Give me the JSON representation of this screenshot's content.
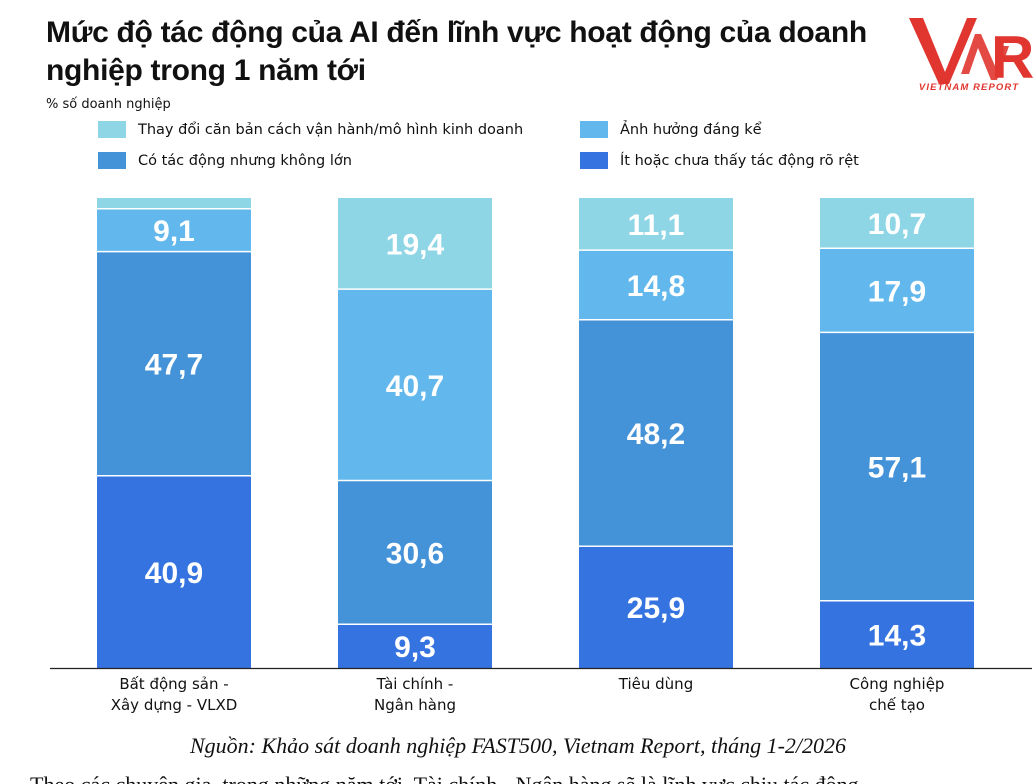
{
  "chart_data": {
    "type": "bar",
    "stacked": true,
    "title": "Mức độ tác động của AI đến lĩnh vực hoạt động của doanh nghiệp trong 1 năm tới",
    "ylabel": "% số doanh nghiệp",
    "ylim": [
      0,
      100
    ],
    "categories": [
      [
        "Bất động sản -",
        "Xây dựng - VLXD"
      ],
      [
        "Tài chính -",
        "Ngân hàng"
      ],
      [
        "Tiêu dùng"
      ],
      [
        "Công nghiệp",
        "chế tạo"
      ]
    ],
    "series": [
      {
        "name": "Ít hoặc chưa thấy tác động rõ rệt",
        "color": "#3473e0",
        "values": [
          40.9,
          9.3,
          25.9,
          14.3
        ],
        "labels": [
          "40,9",
          "9,3",
          "25,9",
          "14,3"
        ]
      },
      {
        "name": "Có tác động nhưng không lớn",
        "color": "#4493d9",
        "values": [
          47.7,
          30.6,
          48.2,
          57.1
        ],
        "labels": [
          "47,7",
          "30,6",
          "48,2",
          "57,1"
        ]
      },
      {
        "name": "Ảnh hưởng đáng kể",
        "color": "#62b8ec",
        "values": [
          9.1,
          40.7,
          14.8,
          17.9
        ],
        "labels": [
          "9,1",
          "40,7",
          "14,8",
          "17,9"
        ]
      },
      {
        "name": "Thay đổi căn bản cách vận hành/mô hình kinh doanh",
        "color": "#8ed6e6",
        "values": [
          2.3,
          19.4,
          11.1,
          10.7
        ],
        "labels": [
          "",
          "19,4",
          "11,1",
          "10,7"
        ]
      }
    ],
    "legend": {
      "position": "top"
    }
  },
  "header": {
    "title": "Mức độ tác động của AI đến lĩnh vực hoạt động của doanh nghiệp trong 1 năm tới",
    "subtitle": "% số doanh nghiệp"
  },
  "legend": {
    "items": [
      {
        "label": "Thay đổi căn bản cách vận hành/mô hình kinh doanh",
        "color": "#8ed6e6"
      },
      {
        "label": "Ảnh hưởng đáng kể",
        "color": "#62b8ec"
      },
      {
        "label": "Có tác động nhưng không lớn",
        "color": "#4493d9"
      },
      {
        "label": "Ít hoặc chưa thấy tác động rõ rệt",
        "color": "#3473e0"
      }
    ]
  },
  "logo": {
    "name": "vnr-logo",
    "tagline": "VIETNAM REPORT"
  },
  "footer": {
    "source": "Nguồn: Khảo sát doanh nghiệp FAST500, Vietnam Report, tháng 1-2/2026",
    "cutoff_text": "Theo các chuyên gia, trong những năm tới, Tài chính - Ngân hàng sẽ là lĩnh vực chịu tác động"
  }
}
